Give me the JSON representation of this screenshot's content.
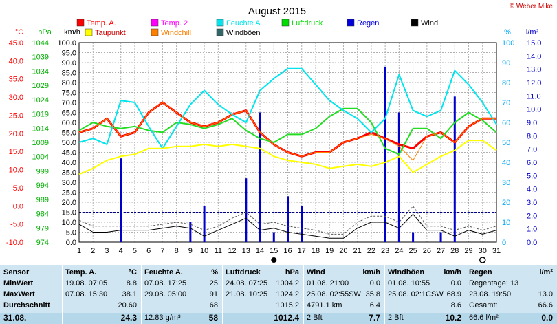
{
  "credit": "© Weber Mike",
  "chart_data": {
    "type": "line",
    "title": "August 2015",
    "x": [
      1,
      2,
      3,
      4,
      5,
      6,
      7,
      8,
      9,
      10,
      11,
      12,
      13,
      14,
      15,
      16,
      17,
      18,
      19,
      20,
      21,
      22,
      23,
      24,
      25,
      26,
      27,
      28,
      29,
      30,
      31
    ],
    "axes": {
      "celsius": {
        "label": "°C",
        "ticks": [
          "45.0",
          "40.0",
          "35.0",
          "30.0",
          "25.0",
          "20.0",
          "15.0",
          "10.0",
          "5.0",
          "0.0",
          "-5.0",
          "-10.0"
        ],
        "color": "#ff0000"
      },
      "hpa": {
        "label": "hPa",
        "ticks": [
          "1044",
          "1039",
          "1034",
          "1029",
          "1024",
          "1019",
          "1014",
          "1009",
          "1004",
          "999",
          "994",
          "989",
          "984",
          "979",
          "974"
        ],
        "color": "#00b000"
      },
      "kmh": {
        "label": "km/h",
        "ticks": [
          "100.0",
          "95.0",
          "90.0",
          "85.0",
          "80.0",
          "75.0",
          "70.0",
          "65.0",
          "60.0",
          "55.0",
          "50.0",
          "45.0",
          "40.0",
          "35.0",
          "30.0",
          "25.0",
          "20.0",
          "15.0",
          "10.0",
          "5.0",
          "0.0"
        ],
        "color": "#000000"
      },
      "percent": {
        "label": "%",
        "ticks": [
          "100",
          "90",
          "80",
          "70",
          "60",
          "50",
          "40",
          "30",
          "20",
          "10",
          "0"
        ],
        "color": "#00aaff"
      },
      "rain": {
        "label": "l/m²",
        "ticks": [
          "15.0",
          "14.0",
          "13.0",
          "12.0",
          "11.0",
          "10.0",
          "9.0",
          "8.0",
          "7.0",
          "6.0",
          "5.0",
          "4.0",
          "3.0",
          "2.0",
          "1.0",
          "0.0"
        ],
        "color": "#0000cc"
      }
    },
    "legend": [
      {
        "name": "Temp. A.",
        "color": "#ff0000"
      },
      {
        "name": "Temp. 2",
        "color": "#ff00ff"
      },
      {
        "name": "Feuchte A.",
        "color": "#00e5ee"
      },
      {
        "name": "Luftdruck",
        "color": "#00dd00"
      },
      {
        "name": "Regen",
        "color": "#0000dd"
      },
      {
        "name": "Wind",
        "color": "#000000"
      },
      {
        "name": "Taupunkt",
        "color": "#ffff00"
      },
      {
        "name": "Windchill",
        "color": "#ff8000"
      },
      {
        "name": "Windböen",
        "color": "#336666"
      }
    ],
    "series": [
      {
        "name": "Temp. A.",
        "axis": "kmh",
        "color": "#ff0000",
        "width": 3,
        "values": [
          55,
          57,
          62,
          53,
          55,
          65,
          70,
          65,
          60,
          58,
          60,
          64,
          66,
          55,
          49,
          45,
          43,
          45,
          45,
          50,
          52,
          55,
          52,
          49,
          47,
          53,
          55,
          50,
          58,
          62,
          62
        ]
      },
      {
        "name": "Luftdruck",
        "axis": "kmh",
        "color": "#22dd22",
        "width": 2,
        "values": [
          56,
          60,
          58,
          57,
          58,
          56,
          55,
          60,
          59,
          57,
          59,
          62,
          56,
          52,
          50,
          54,
          54,
          57,
          63,
          67,
          67,
          60,
          47,
          44,
          57,
          57,
          52,
          60,
          65,
          61,
          55
        ]
      },
      {
        "name": "Feuchte A.",
        "axis": "kmh",
        "color": "#00e5ee",
        "width": 2,
        "values": [
          50,
          52,
          49,
          71,
          70,
          58,
          47,
          58,
          69,
          76,
          69,
          64,
          60,
          76,
          82,
          87,
          87,
          79,
          71,
          66,
          62,
          55,
          62,
          84,
          66,
          63,
          66,
          86,
          79,
          70,
          59
        ]
      },
      {
        "name": "Taupunkt",
        "axis": "kmh",
        "color": "#ffff00",
        "width": 2,
        "values": [
          34,
          37,
          41,
          43,
          44,
          47,
          47,
          48,
          48,
          49,
          48,
          49,
          48,
          47,
          43,
          41,
          40,
          39,
          37,
          38,
          39,
          38,
          40,
          43,
          35,
          39,
          43,
          46,
          51,
          51,
          46
        ]
      },
      {
        "name": "Windchill",
        "axis": "kmh",
        "color": "#ff8000",
        "width": 1,
        "values": [
          55,
          57,
          62,
          53,
          55,
          65,
          70,
          65,
          60,
          58,
          60,
          64,
          66,
          55,
          49,
          45,
          43,
          45,
          45,
          50,
          52,
          54,
          52,
          48,
          41,
          53,
          55,
          50,
          58,
          62,
          62
        ]
      },
      {
        "name": "Wind",
        "axis": "kmh",
        "color": "#000000",
        "width": 1,
        "values": [
          9,
          5,
          5,
          6,
          6,
          6,
          7,
          8,
          7,
          3,
          6,
          9,
          12,
          6,
          7,
          5,
          4,
          3,
          2,
          2,
          7,
          10,
          10,
          7,
          14,
          6,
          6,
          3,
          6,
          4,
          6
        ]
      },
      {
        "name": "Windböen",
        "axis": "kmh",
        "color": "#555555",
        "width": 1,
        "dashed": true,
        "values": [
          11,
          8,
          8,
          8,
          8,
          8,
          9,
          10,
          9,
          6,
          8,
          12,
          15,
          9,
          10,
          8,
          7,
          6,
          4,
          4,
          10,
          13,
          13,
          10,
          18,
          8,
          8,
          6,
          8,
          6,
          8
        ]
      }
    ],
    "rain": {
      "name": "Regen",
      "axis": "kmh",
      "color": "#0000cc",
      "bars": [
        [
          4,
          42
        ],
        [
          9,
          10
        ],
        [
          10,
          18
        ],
        [
          13,
          32
        ],
        [
          14,
          65
        ],
        [
          15,
          5
        ],
        [
          16,
          23
        ],
        [
          17,
          18
        ],
        [
          23,
          88
        ],
        [
          24,
          65
        ],
        [
          25,
          5
        ],
        [
          27,
          5
        ],
        [
          28,
          73
        ]
      ]
    }
  },
  "stats": {
    "columns": [
      {
        "title": "Sensor",
        "unit": "",
        "rows": [
          "MinWert",
          "MaxWert",
          "Durchschnitt"
        ],
        "last": "31.08."
      },
      {
        "title": "Temp. A.",
        "unit": "°C",
        "rows": [
          [
            "19.08.  07:05",
            "8.8"
          ],
          [
            "07.08.  15:30",
            "38.1"
          ],
          [
            "",
            "20.60"
          ]
        ],
        "last": [
          "",
          "24.3"
        ]
      },
      {
        "title": "Feuchte A.",
        "unit": "%",
        "rows": [
          [
            "07.08.  17:25",
            "25"
          ],
          [
            "29.08.  05:00",
            "91"
          ],
          [
            "",
            "68"
          ]
        ],
        "last": [
          "12.83 g/m³",
          "58"
        ]
      },
      {
        "title": "Luftdruck",
        "unit": "hPa",
        "rows": [
          [
            "24.08.  07:25",
            "1004.2"
          ],
          [
            "21.08.  10:25",
            "1024.2"
          ],
          [
            "",
            "1015.2"
          ]
        ],
        "last": [
          "",
          "1012.4"
        ]
      },
      {
        "title": "Wind",
        "unit": "km/h",
        "rows": [
          [
            "01.08.  21:00",
            "0.0"
          ],
          [
            "25.08.  02:55SW",
            "35.8"
          ],
          [
            "4791.1 km",
            "6.4"
          ]
        ],
        "last": [
          "2 Bft",
          "7.7"
        ]
      },
      {
        "title": "Windböen",
        "unit": "km/h",
        "rows": [
          [
            "01.08.  10:55",
            "0.0"
          ],
          [
            "25.08.  02:1CSW",
            "68.9"
          ],
          [
            "",
            "8.6"
          ]
        ],
        "last": [
          "2 Bft",
          "10.2"
        ]
      },
      {
        "title": "Regen",
        "unit": "l/m²",
        "rows": [
          [
            "Regentage: 13",
            ""
          ],
          [
            "23.08.  19:50",
            "13.0"
          ],
          [
            "Gesamt:",
            "66.6"
          ]
        ],
        "last": [
          "66.6 l/m²",
          "0.0"
        ]
      }
    ]
  }
}
